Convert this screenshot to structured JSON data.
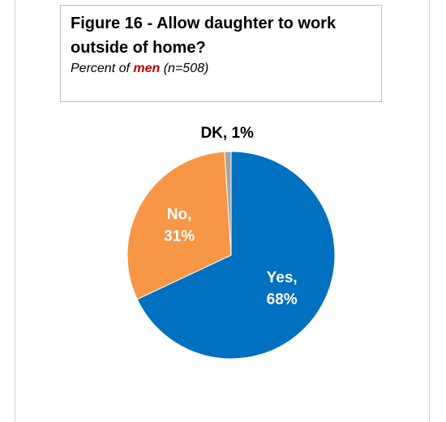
{
  "figure": {
    "title": "Figure 16 - Allow daughter to work outside of home?",
    "subtitle_prefix": "Percent of ",
    "subtitle_emph": "men",
    "subtitle_suffix": " (n=508)"
  },
  "chart_data": {
    "type": "pie",
    "title": "Figure 16 - Allow daughter to work outside of home?",
    "subtitle": "Percent of men (n=508)",
    "start_angle_deg": 0,
    "direction": "clockwise",
    "slices": [
      {
        "name": "Yes",
        "value": 68,
        "label_lines": [
          "Yes,",
          "68%"
        ],
        "color": "#0070c0",
        "label_color": "#ffffff",
        "label_outside": false
      },
      {
        "name": "No",
        "value": 31,
        "label_lines": [
          "No,",
          "31%"
        ],
        "color": "#f79646",
        "label_color": "#ffffff",
        "label_outside": false
      },
      {
        "name": "DK",
        "value": 1,
        "label_lines": [
          "DK, 1%"
        ],
        "color": "#a5a5a5",
        "label_color": "#000000",
        "label_outside": true
      }
    ],
    "legend": "none"
  }
}
